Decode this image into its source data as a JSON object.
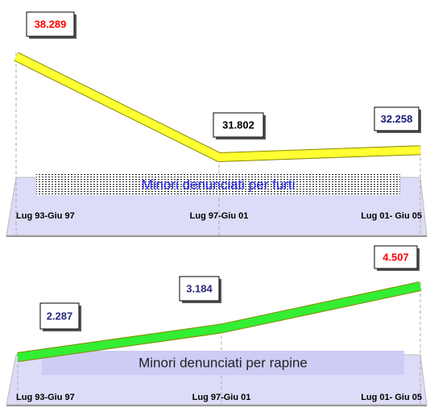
{
  "chart_data": [
    {
      "type": "line",
      "title": "Minori denunciati per furti",
      "categories": [
        "Lug 93-Giu 97",
        "Lug 97-Giu 01",
        "Lug 01- Giu 05"
      ],
      "values": [
        38289,
        31802,
        32258
      ],
      "value_labels": [
        "38.289",
        "31.802",
        "32.258"
      ],
      "value_label_colors": [
        "#ff0000",
        "#000000",
        "#1a1a80"
      ],
      "color": "#ffff33"
    },
    {
      "type": "line",
      "title": "Minori denunciati per rapine",
      "categories": [
        "Lug 93-Giu 97",
        "Lug 97-Giu 01",
        "Lug 01- Giu 05"
      ],
      "values": [
        2287,
        3184,
        4507
      ],
      "value_labels": [
        "2.287",
        "3.184",
        "4.507"
      ],
      "value_label_colors": [
        "#2b2b80",
        "#2b2b80",
        "#ff0000"
      ],
      "color": "#33ee33"
    }
  ]
}
